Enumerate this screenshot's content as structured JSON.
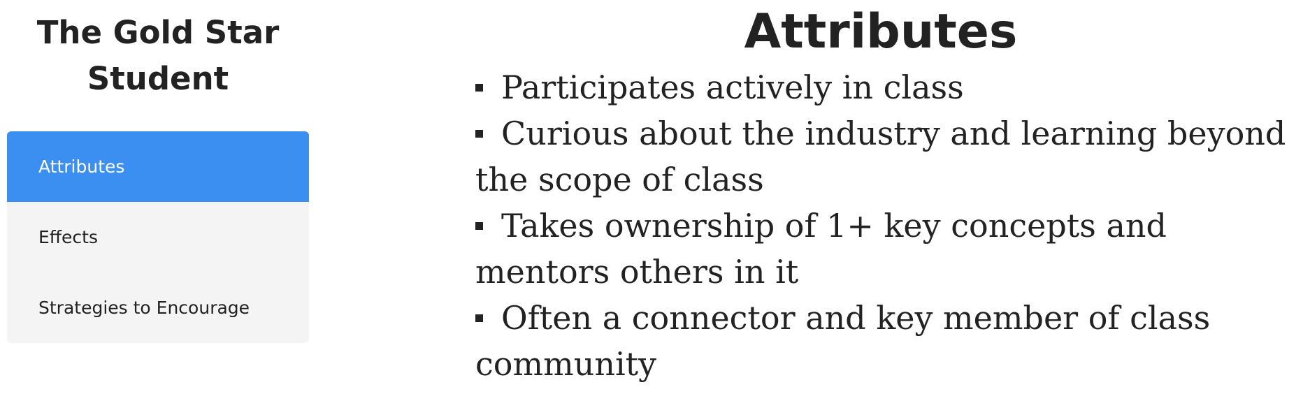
{
  "sidebar": {
    "title": "The Gold Star Student",
    "items": [
      {
        "label": "Attributes",
        "active": true
      },
      {
        "label": "Effects",
        "active": false
      },
      {
        "label": "Strategies to Encourage",
        "active": false
      }
    ],
    "active_color": "#3a8ff0",
    "background_color": "#f4f4f4"
  },
  "main": {
    "title": "Attributes",
    "items": [
      "Participates actively in class",
      "Curious about the industry and learning beyond the scope of class",
      "Takes ownership of 1+ key concepts and mentors others in it",
      "Often a connector and key member of class community"
    ]
  }
}
